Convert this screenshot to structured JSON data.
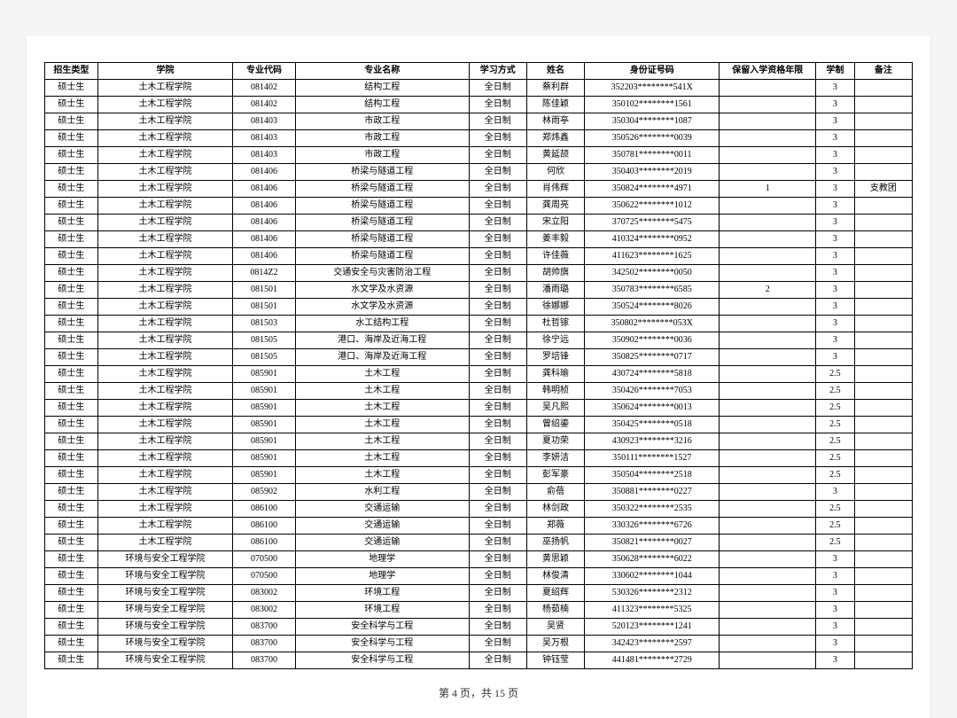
{
  "columns": [
    "招生类型",
    "学院",
    "专业代码",
    "专业名称",
    "学习方式",
    "姓名",
    "身份证号码",
    "保留入学资格年限",
    "学制",
    "备注"
  ],
  "rows": [
    [
      "硕士生",
      "土木工程学院",
      "081402",
      "结构工程",
      "全日制",
      "蔡利群",
      "352203********541X",
      "",
      "3",
      ""
    ],
    [
      "硕士生",
      "土木工程学院",
      "081402",
      "结构工程",
      "全日制",
      "陈佳颖",
      "350102********1561",
      "",
      "3",
      ""
    ],
    [
      "硕士生",
      "土木工程学院",
      "081403",
      "市政工程",
      "全日制",
      "林雨亭",
      "350304********1087",
      "",
      "3",
      ""
    ],
    [
      "硕士生",
      "土木工程学院",
      "081403",
      "市政工程",
      "全日制",
      "郑炜鑫",
      "350526********0039",
      "",
      "3",
      ""
    ],
    [
      "硕士生",
      "土木工程学院",
      "081403",
      "市政工程",
      "全日制",
      "黄延颉",
      "350781********0011",
      "",
      "3",
      ""
    ],
    [
      "硕士生",
      "土木工程学院",
      "081406",
      "桥梁与隧道工程",
      "全日制",
      "何欣",
      "350403********2019",
      "",
      "3",
      ""
    ],
    [
      "硕士生",
      "土木工程学院",
      "081406",
      "桥梁与隧道工程",
      "全日制",
      "肖伟辉",
      "350824********4971",
      "1",
      "3",
      "支教团"
    ],
    [
      "硕士生",
      "土木工程学院",
      "081406",
      "桥梁与隧道工程",
      "全日制",
      "龚周亮",
      "350622********1012",
      "",
      "3",
      ""
    ],
    [
      "硕士生",
      "土木工程学院",
      "081406",
      "桥梁与隧道工程",
      "全日制",
      "宋立阳",
      "370725********5475",
      "",
      "3",
      ""
    ],
    [
      "硕士生",
      "土木工程学院",
      "081406",
      "桥梁与隧道工程",
      "全日制",
      "姜丰毅",
      "410324********0952",
      "",
      "3",
      ""
    ],
    [
      "硕士生",
      "土木工程学院",
      "081406",
      "桥梁与隧道工程",
      "全日制",
      "许佳薇",
      "411623********1625",
      "",
      "3",
      ""
    ],
    [
      "硕士生",
      "土木工程学院",
      "0814Z2",
      "交通安全与灾害防治工程",
      "全日制",
      "胡帅旗",
      "342502********0050",
      "",
      "3",
      ""
    ],
    [
      "硕士生",
      "土木工程学院",
      "081501",
      "水文学及水资源",
      "全日制",
      "潘雨璐",
      "350783********6585",
      "2",
      "3",
      ""
    ],
    [
      "硕士生",
      "土木工程学院",
      "081501",
      "水文学及水资源",
      "全日制",
      "徐娜娜",
      "350524********8026",
      "",
      "3",
      ""
    ],
    [
      "硕士生",
      "土木工程学院",
      "081503",
      "水工结构工程",
      "全日制",
      "杜哲镓",
      "350802********053X",
      "",
      "3",
      ""
    ],
    [
      "硕士生",
      "土木工程学院",
      "081505",
      "港口、海岸及近海工程",
      "全日制",
      "徐宁远",
      "350902********0036",
      "",
      "3",
      ""
    ],
    [
      "硕士生",
      "土木工程学院",
      "081505",
      "港口、海岸及近海工程",
      "全日制",
      "罗培锋",
      "350825********0717",
      "",
      "3",
      ""
    ],
    [
      "硕士生",
      "土木工程学院",
      "085901",
      "土木工程",
      "全日制",
      "龚科瑜",
      "430724********5818",
      "",
      "2.5",
      ""
    ],
    [
      "硕士生",
      "土木工程学院",
      "085901",
      "土木工程",
      "全日制",
      "韩明桢",
      "350426********7053",
      "",
      "2.5",
      ""
    ],
    [
      "硕士生",
      "土木工程学院",
      "085901",
      "土木工程",
      "全日制",
      "吴凡熙",
      "350624********0013",
      "",
      "2.5",
      ""
    ],
    [
      "硕士生",
      "土木工程学院",
      "085901",
      "土木工程",
      "全日制",
      "曾绍鎏",
      "350425********0518",
      "",
      "2.5",
      ""
    ],
    [
      "硕士生",
      "土木工程学院",
      "085901",
      "土木工程",
      "全日制",
      "夏功荣",
      "430923********3216",
      "",
      "2.5",
      ""
    ],
    [
      "硕士生",
      "土木工程学院",
      "085901",
      "土木工程",
      "全日制",
      "李妍洁",
      "350111********1527",
      "",
      "2.5",
      ""
    ],
    [
      "硕士生",
      "土木工程学院",
      "085901",
      "土木工程",
      "全日制",
      "彭军豪",
      "350504********2518",
      "",
      "2.5",
      ""
    ],
    [
      "硕士生",
      "土木工程学院",
      "085902",
      "水利工程",
      "全日制",
      "俞蓓",
      "350881********0227",
      "",
      "3",
      ""
    ],
    [
      "硕士生",
      "土木工程学院",
      "086100",
      "交通运输",
      "全日制",
      "林剑政",
      "350322********2535",
      "",
      "2.5",
      ""
    ],
    [
      "硕士生",
      "土木工程学院",
      "086100",
      "交通运输",
      "全日制",
      "郑薇",
      "330326********6726",
      "",
      "2.5",
      ""
    ],
    [
      "硕士生",
      "土木工程学院",
      "086100",
      "交通运输",
      "全日制",
      "巫扬帆",
      "350821********0027",
      "",
      "2.5",
      ""
    ],
    [
      "硕士生",
      "环境与安全工程学院",
      "070500",
      "地理学",
      "全日制",
      "黄思颖",
      "350628********6022",
      "",
      "3",
      ""
    ],
    [
      "硕士生",
      "环境与安全工程学院",
      "070500",
      "地理学",
      "全日制",
      "林俊清",
      "330602********1044",
      "",
      "3",
      ""
    ],
    [
      "硕士生",
      "环境与安全工程学院",
      "083002",
      "环境工程",
      "全日制",
      "夏绍辉",
      "530326********2312",
      "",
      "3",
      ""
    ],
    [
      "硕士生",
      "环境与安全工程学院",
      "083002",
      "环境工程",
      "全日制",
      "杨茹楠",
      "411323********5325",
      "",
      "3",
      ""
    ],
    [
      "硕士生",
      "环境与安全工程学院",
      "083700",
      "安全科学与工程",
      "全日制",
      "吴贤",
      "520123********1241",
      "",
      "3",
      ""
    ],
    [
      "硕士生",
      "环境与安全工程学院",
      "083700",
      "安全科学与工程",
      "全日制",
      "吴万根",
      "342423********2597",
      "",
      "3",
      ""
    ],
    [
      "硕士生",
      "环境与安全工程学院",
      "083700",
      "安全科学与工程",
      "全日制",
      "钟钰莹",
      "441481********2729",
      "",
      "3",
      ""
    ]
  ],
  "pagination": {
    "prefix": "第",
    "current": 4,
    "mid": "页，共",
    "total": 15,
    "suffix": "页"
  }
}
